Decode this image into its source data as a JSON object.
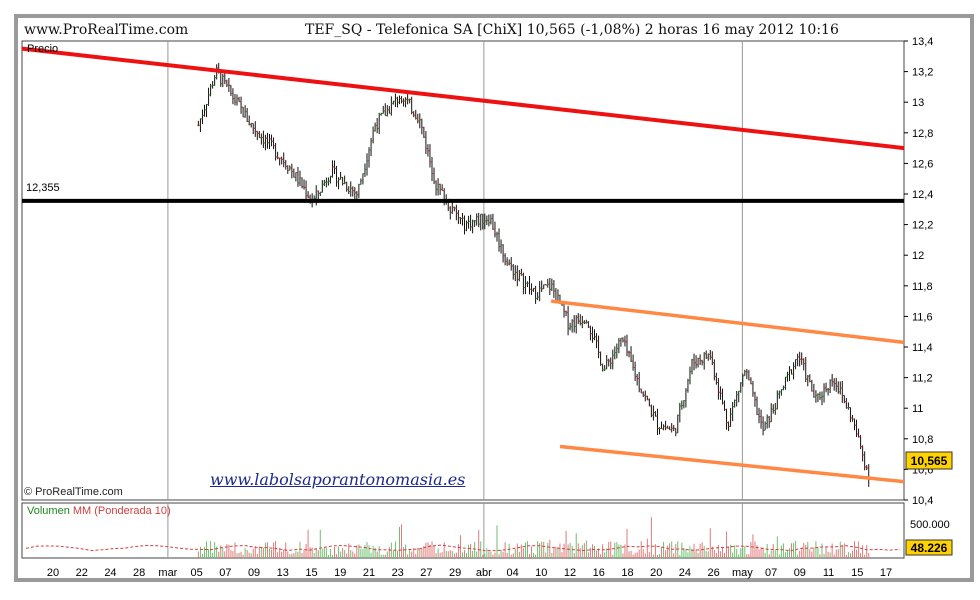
{
  "header": {
    "site": "www.ProRealTime.com",
    "title": "TEF_SQ - Telefonica SA [ChiX]   10,565 (-1,08%)   2 horas  16 may 2012 10:16"
  },
  "price_panel_label": "Precio",
  "copyright": "© ProRealTime.com",
  "watermark": "www.labolsaporantonomasia.es",
  "volume_panel": {
    "label_prefix": "Volumen",
    "label_mm": "MM (Ponderada 10)",
    "axis_label": "500.000",
    "current_value_label": "48.226"
  },
  "colors": {
    "frame": "#8a8a8a",
    "up_bar": "#2b8a2b",
    "down_bar": "#b33",
    "red_trendline": "#ee1111",
    "orange_channel": "#ff8844",
    "support_line": "#000000",
    "vol_up": "#6fbf6f",
    "vol_down": "#e07a7a"
  },
  "chart_data": {
    "type": "line",
    "title": "TEF_SQ - Telefonica SA [ChiX]",
    "last_price": 10.565,
    "last_price_label": "10,565",
    "change_pct": "-1,08%",
    "interval": "2 horas",
    "timestamp": "16 may 2012 10:16",
    "y_ticks": [
      "13,4",
      "13,2",
      "13",
      "12,8",
      "12,6",
      "12,4",
      "12,2",
      "12",
      "11,8",
      "11,6",
      "11,4",
      "11,2",
      "11",
      "10,8",
      "10,6",
      "10,4"
    ],
    "ylim": [
      10.4,
      13.4
    ],
    "x_tick_labels": [
      "20",
      "22",
      "24",
      "28",
      "mar",
      "05",
      "07",
      "09",
      "13",
      "15",
      "19",
      "21",
      "23",
      "27",
      "29",
      "abr",
      "04",
      "10",
      "12",
      "16",
      "18",
      "20",
      "24",
      "26",
      "may",
      "07",
      "09",
      "11",
      "15",
      "17"
    ],
    "support_level": 12.355,
    "support_label": "12,355",
    "series": [
      {
        "name": "Precio",
        "points": [
          [
            20,
            12.85
          ],
          [
            22,
            13.2
          ],
          [
            26,
            12.85
          ],
          [
            30,
            12.6
          ],
          [
            33,
            12.35
          ],
          [
            35,
            12.55
          ],
          [
            38,
            12.4
          ],
          [
            40,
            12.85
          ],
          [
            43,
            13.05
          ],
          [
            45,
            12.9
          ],
          [
            47,
            12.45
          ],
          [
            50,
            12.2
          ],
          [
            53,
            12.25
          ],
          [
            55,
            11.95
          ],
          [
            58,
            11.75
          ],
          [
            60,
            11.8
          ],
          [
            62,
            11.55
          ],
          [
            64,
            11.6
          ],
          [
            66,
            11.25
          ],
          [
            68,
            11.45
          ],
          [
            70,
            11.15
          ],
          [
            72,
            10.9
          ],
          [
            74,
            10.85
          ],
          [
            76,
            11.3
          ],
          [
            78,
            11.35
          ],
          [
            80,
            10.9
          ],
          [
            82,
            11.25
          ],
          [
            84,
            10.85
          ],
          [
            86,
            11.1
          ],
          [
            88,
            11.35
          ],
          [
            90,
            11.05
          ],
          [
            92,
            11.2
          ],
          [
            94,
            10.95
          ],
          [
            96,
            10.565
          ]
        ],
        "x_note": "x = position index along the date axis (0 = 20 feb, 96 = 17 may)"
      }
    ],
    "trendlines": [
      {
        "kind": "resistance",
        "color": "red",
        "from": [
          0,
          13.35
        ],
        "to": [
          100,
          12.7
        ]
      },
      {
        "kind": "support",
        "color": "black",
        "level": 12.355
      },
      {
        "kind": "channel_top",
        "color": "orange",
        "from": [
          60,
          11.7
        ],
        "to": [
          100,
          11.43
        ]
      },
      {
        "kind": "channel_bottom",
        "color": "orange",
        "from": [
          61,
          10.75
        ],
        "to": [
          100,
          10.52
        ]
      }
    ]
  }
}
